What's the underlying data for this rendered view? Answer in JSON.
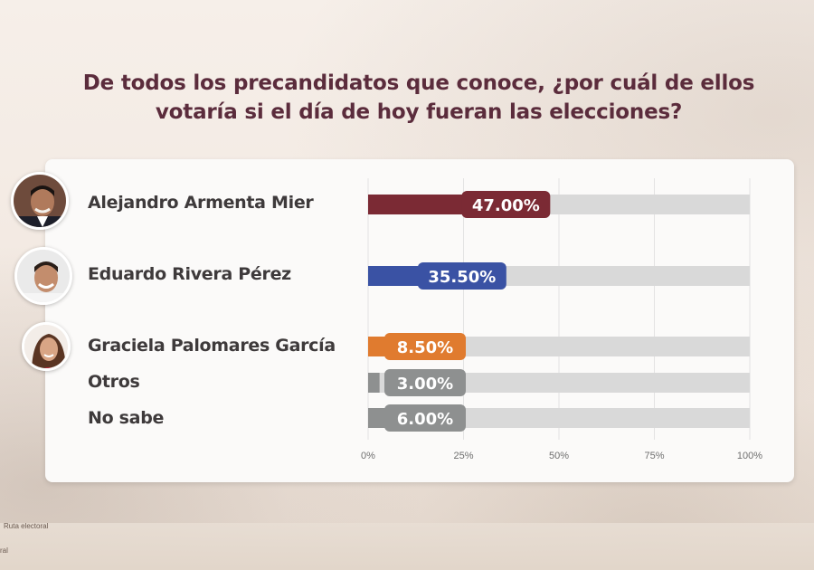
{
  "title_line1": "De todos los precandidatos que conoce, ¿por cuál de ellos",
  "title_line2": "votaría si el día de hoy fueran las elecciones?",
  "footer": {
    "text1": "Ruta electoral",
    "text2": "ral"
  },
  "chart_data": {
    "type": "bar",
    "orientation": "horizontal",
    "categories": [
      "Alejandro Armenta Mier",
      "Eduardo Rivera Pérez",
      "Graciela Palomares García",
      "Otros",
      "No sabe"
    ],
    "values": [
      47.0,
      35.5,
      8.5,
      3.0,
      6.0
    ],
    "value_labels": [
      "47.00%",
      "35.50%",
      "8.50%",
      "3.00%",
      "6.00%"
    ],
    "colors": [
      "#7b2a34",
      "#3a52a4",
      "#e07b2f",
      "#8e9090",
      "#8e9090"
    ],
    "track_color": "#d9d9d9",
    "xlim": [
      0,
      100
    ],
    "ticks": [
      0,
      25,
      50,
      75,
      100
    ],
    "tick_labels": [
      "0%",
      "25%",
      "50%",
      "75%",
      "100%"
    ],
    "grid": true
  }
}
